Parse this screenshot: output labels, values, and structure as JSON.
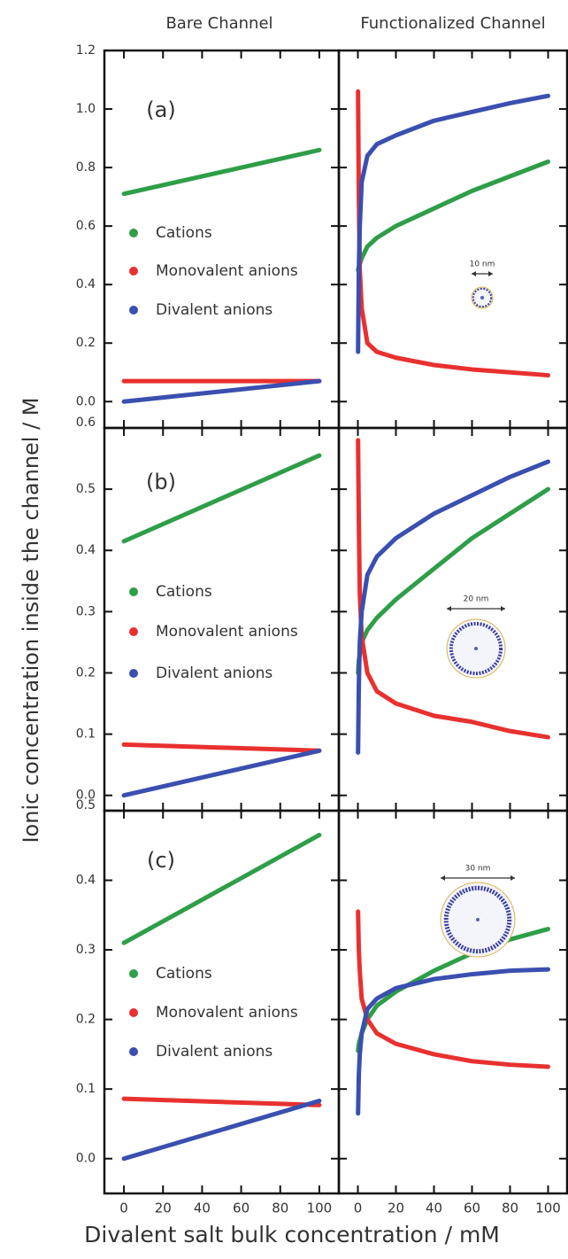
{
  "header": {
    "columns": [
      "Bare Channel",
      "Functionalized Channel"
    ],
    "y_label": "Ionic concentration inside the channel / M",
    "x_label": "Divalent salt bulk concentration / mM"
  },
  "chart_data": [
    {
      "type": "line",
      "panel_label": "(a)",
      "xlim": [
        -10,
        110
      ],
      "ylim": [
        -0.09,
        1.2
      ],
      "yticks": [
        {
          "value": 0,
          "label": "0.0"
        },
        0.2,
        0.4,
        0.6,
        0.8,
        {
          "value": 1,
          "label": "1.0"
        },
        1.2
      ],
      "x": [
        0,
        100
      ],
      "series": [
        {
          "name": "Cations",
          "color": "#2e9e48",
          "values": [
            0.71,
            0.86
          ]
        },
        {
          "name": "Monovalent anions",
          "color": "#e8312f",
          "values": [
            0.07,
            0.07
          ]
        },
        {
          "name": "Divalent anions",
          "color": "#3a4fb0",
          "values": [
            0,
            0.07
          ]
        }
      ]
    },
    {
      "type": "line",
      "annotation": "10 nm",
      "xlim": [
        -10,
        110
      ],
      "ylim": [
        -0.09,
        1.2
      ],
      "x": [
        0.1,
        0.5,
        1,
        2,
        5,
        10,
        20,
        40,
        60,
        80,
        100
      ],
      "series": [
        {
          "color": "#2e9e48",
          "values": [
            0.45,
            0.46,
            0.47,
            0.49,
            0.53,
            0.56,
            0.6,
            0.66,
            0.72,
            0.77,
            0.82
          ]
        },
        {
          "color": "#e8312f",
          "values": [
            1.06,
            0.7,
            0.45,
            0.32,
            0.2,
            0.17,
            0.15,
            0.125,
            0.11,
            0.1,
            0.09
          ]
        },
        {
          "color": "#3a4fb0",
          "values": [
            0.17,
            0.45,
            0.6,
            0.75,
            0.84,
            0.88,
            0.91,
            0.96,
            0.99,
            1.02,
            1.045
          ]
        }
      ]
    },
    {
      "type": "line",
      "panel_label": "(b)",
      "xlim": [
        -10,
        110
      ],
      "ylim": [
        -0.025,
        0.6
      ],
      "yticks": [
        {
          "value": 0,
          "label": "0.0"
        },
        0.1,
        0.2,
        0.3,
        0.4,
        0.5,
        0.6
      ],
      "x": [
        0,
        100
      ],
      "series": [
        {
          "name": "Cations",
          "color": "#2e9e48",
          "values": [
            0.415,
            0.555
          ]
        },
        {
          "name": "Monovalent anions",
          "color": "#e8312f",
          "values": [
            0.083,
            0.073
          ]
        },
        {
          "name": "Divalent anions",
          "color": "#3a4fb0",
          "values": [
            0,
            0.073
          ]
        }
      ]
    },
    {
      "type": "line",
      "annotation": "20 nm",
      "xlim": [
        -10,
        110
      ],
      "ylim": [
        -0.025,
        0.6
      ],
      "x": [
        0.1,
        0.5,
        1,
        2,
        5,
        10,
        20,
        40,
        60,
        80,
        100
      ],
      "series": [
        {
          "color": "#2e9e48",
          "values": [
            0.2,
            0.22,
            0.23,
            0.25,
            0.27,
            0.29,
            0.32,
            0.37,
            0.42,
            0.46,
            0.5
          ]
        },
        {
          "color": "#e8312f",
          "values": [
            0.58,
            0.45,
            0.33,
            0.26,
            0.2,
            0.17,
            0.15,
            0.13,
            0.12,
            0.105,
            0.095
          ]
        },
        {
          "color": "#3a4fb0",
          "values": [
            0.07,
            0.18,
            0.25,
            0.3,
            0.36,
            0.39,
            0.42,
            0.46,
            0.49,
            0.52,
            0.545
          ]
        }
      ]
    },
    {
      "type": "line",
      "panel_label": "(c)",
      "xlim": [
        -10,
        110
      ],
      "ylim": [
        -0.05,
        0.5
      ],
      "xticks": [
        0,
        20,
        40,
        60,
        80,
        100
      ],
      "yticks": [
        {
          "value": 0,
          "label": "0.0"
        },
        0.1,
        0.2,
        0.3,
        0.4,
        0.5
      ],
      "x": [
        0,
        100
      ],
      "series": [
        {
          "name": "Cations",
          "color": "#2e9e48",
          "values": [
            0.31,
            0.465
          ]
        },
        {
          "name": "Monovalent anions",
          "color": "#e8312f",
          "values": [
            0.086,
            0.077
          ]
        },
        {
          "name": "Divalent anions",
          "color": "#3a4fb0",
          "values": [
            0,
            0.083
          ]
        }
      ]
    },
    {
      "type": "line",
      "annotation": "30 nm",
      "xlim": [
        -10,
        110
      ],
      "ylim": [
        -0.05,
        0.5
      ],
      "xticks": [
        0,
        20,
        40,
        60,
        80,
        100
      ],
      "x": [
        0.1,
        0.5,
        1,
        2,
        5,
        10,
        20,
        40,
        60,
        80,
        100
      ],
      "series": [
        {
          "color": "#2e9e48",
          "values": [
            0.155,
            0.165,
            0.17,
            0.18,
            0.2,
            0.22,
            0.24,
            0.27,
            0.295,
            0.315,
            0.33
          ]
        },
        {
          "color": "#e8312f",
          "values": [
            0.355,
            0.3,
            0.27,
            0.23,
            0.2,
            0.18,
            0.165,
            0.15,
            0.14,
            0.135,
            0.132
          ]
        },
        {
          "color": "#3a4fb0",
          "values": [
            0.065,
            0.12,
            0.15,
            0.18,
            0.215,
            0.23,
            0.245,
            0.258,
            0.265,
            0.27,
            0.272
          ]
        }
      ]
    }
  ]
}
